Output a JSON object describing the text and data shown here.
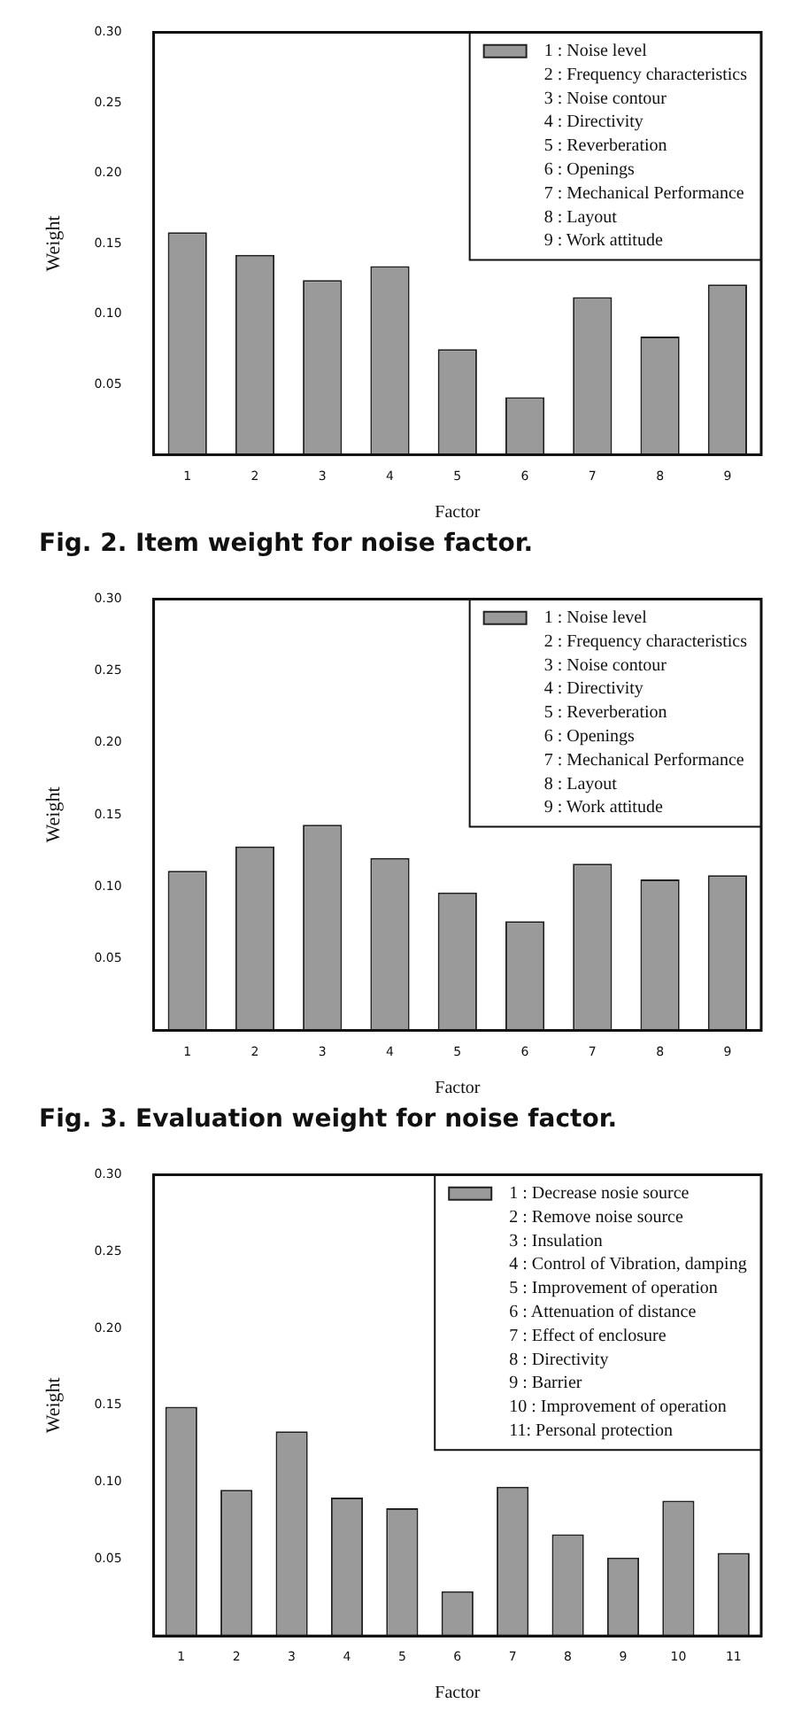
{
  "chart_data": [
    {
      "type": "bar",
      "title": "Fig. 2. Item weight for noise factor.",
      "xlabel": "Factor",
      "ylabel": "Weight",
      "categories": [
        "1",
        "2",
        "3",
        "4",
        "5",
        "6",
        "7",
        "8",
        "9"
      ],
      "series": [
        {
          "name": "1 : Noise level",
          "color": "#9a9a9a",
          "values": [
            0.158,
            0.142,
            0.124,
            0.134,
            0.075,
            0.041,
            0.112,
            0.084,
            0.121
          ]
        }
      ],
      "annotations": [
        "2 : Frequency characteristics",
        "3 : Noise contour",
        "4 : Directivity",
        "5 : Reverberation",
        "6 : Openings",
        "7 : Mechanical Performance",
        "8 : Layout",
        "9 : Work attitude"
      ],
      "ylim": [
        0,
        0.3
      ],
      "yticks": [
        {
          "value": 0.05,
          "label": "0.05"
        },
        {
          "value": 0.1,
          "label": "0.10"
        },
        {
          "value": 0.15,
          "label": "0.15"
        },
        {
          "value": 0.2,
          "label": "0.20"
        },
        {
          "value": 0.25,
          "label": "0.25"
        },
        {
          "value": 0.3,
          "label": "0.30"
        }
      ],
      "legend": "top right"
    },
    {
      "type": "bar",
      "title": "Fig. 3. Evaluation weight for noise factor.",
      "xlabel": "Factor",
      "ylabel": "Weight",
      "categories": [
        "1",
        "2",
        "3",
        "4",
        "5",
        "6",
        "7",
        "8",
        "9"
      ],
      "series": [
        {
          "name": "1 : Noise level",
          "color": "#9a9a9a",
          "values": [
            0.111,
            0.128,
            0.143,
            0.12,
            0.096,
            0.076,
            0.116,
            0.105,
            0.108
          ]
        }
      ],
      "annotations": [
        "2 : Frequency characteristics",
        "3 : Noise contour",
        "4 : Directivity",
        "5 : Reverberation",
        "6 : Openings",
        "7 : Mechanical Performance",
        "8 : Layout",
        "9 : Work attitude"
      ],
      "ylim": [
        0,
        0.3
      ],
      "yticks": [
        {
          "value": 0.05,
          "label": "0.05"
        },
        {
          "value": 0.1,
          "label": "0.10"
        },
        {
          "value": 0.15,
          "label": "0.15"
        },
        {
          "value": 0.2,
          "label": "0.20"
        },
        {
          "value": 0.25,
          "label": "0.25"
        },
        {
          "value": 0.3,
          "label": "0.30"
        }
      ],
      "legend": "top right"
    },
    {
      "type": "bar",
      "xlabel": "Factor",
      "ylabel": "Weight",
      "categories": [
        "1",
        "2",
        "3",
        "4",
        "5",
        "6",
        "7",
        "8",
        "9",
        "10",
        "11"
      ],
      "series": [
        {
          "name": "1 : Decrease nosie source",
          "color": "#9a9a9a",
          "values": [
            0.149,
            0.095,
            0.133,
            0.09,
            0.083,
            0.029,
            0.097,
            0.066,
            0.051,
            0.088,
            0.054
          ]
        }
      ],
      "annotations": [
        "2 : Remove noise source",
        "3 : Insulation",
        "4 : Control of Vibration, damping",
        "5 : Improvement of operation",
        "6 : Attenuation of distance",
        "7 : Effect of enclosure",
        "8 : Directivity",
        "9 : Barrier",
        "10 : Improvement of operation",
        "11: Personal protection"
      ],
      "ylim": [
        0,
        0.3
      ],
      "yticks": [
        {
          "value": 0.05,
          "label": "0.05"
        },
        {
          "value": 0.1,
          "label": "0.10"
        },
        {
          "value": 0.15,
          "label": "0.15"
        },
        {
          "value": 0.2,
          "label": "0.20"
        },
        {
          "value": 0.25,
          "label": "0.25"
        },
        {
          "value": 0.3,
          "label": "0.30"
        }
      ],
      "legend": "top right"
    }
  ]
}
